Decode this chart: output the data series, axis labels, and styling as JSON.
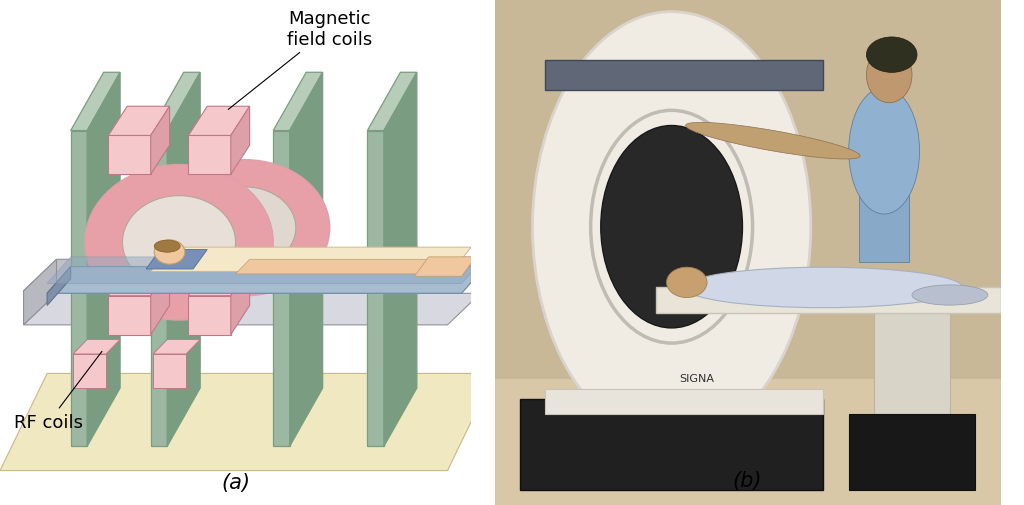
{
  "background_color": "#ffffff",
  "label_a": "(a)",
  "label_b": "(b)",
  "label_magnetic": "Magnetic\nfield coils",
  "label_rf": "RF coils",
  "label_fontsize": 15,
  "annotation_fontsize": 13,
  "fig_width": 10.24,
  "fig_height": 5.06,
  "dpi": 100,
  "sage_green": "#9db8a2",
  "sage_green_dark": "#7a9c80",
  "sage_green_light": "#b8ccba",
  "pink_coil": "#e8a0a8",
  "pink_light": "#f5c8cc",
  "pink_mid": "#dda0a8",
  "cream_table": "#f0e8c0",
  "cream_body": "#f5e8c8",
  "skin": "#f0c8a0",
  "blue_bed": "#a8bcd0",
  "blue_bed_dark": "#8090a8",
  "gray_rail": "#c0c0c8",
  "gray_rail_dark": "#909098",
  "white": "#ffffff",
  "border_dark": "#555555"
}
